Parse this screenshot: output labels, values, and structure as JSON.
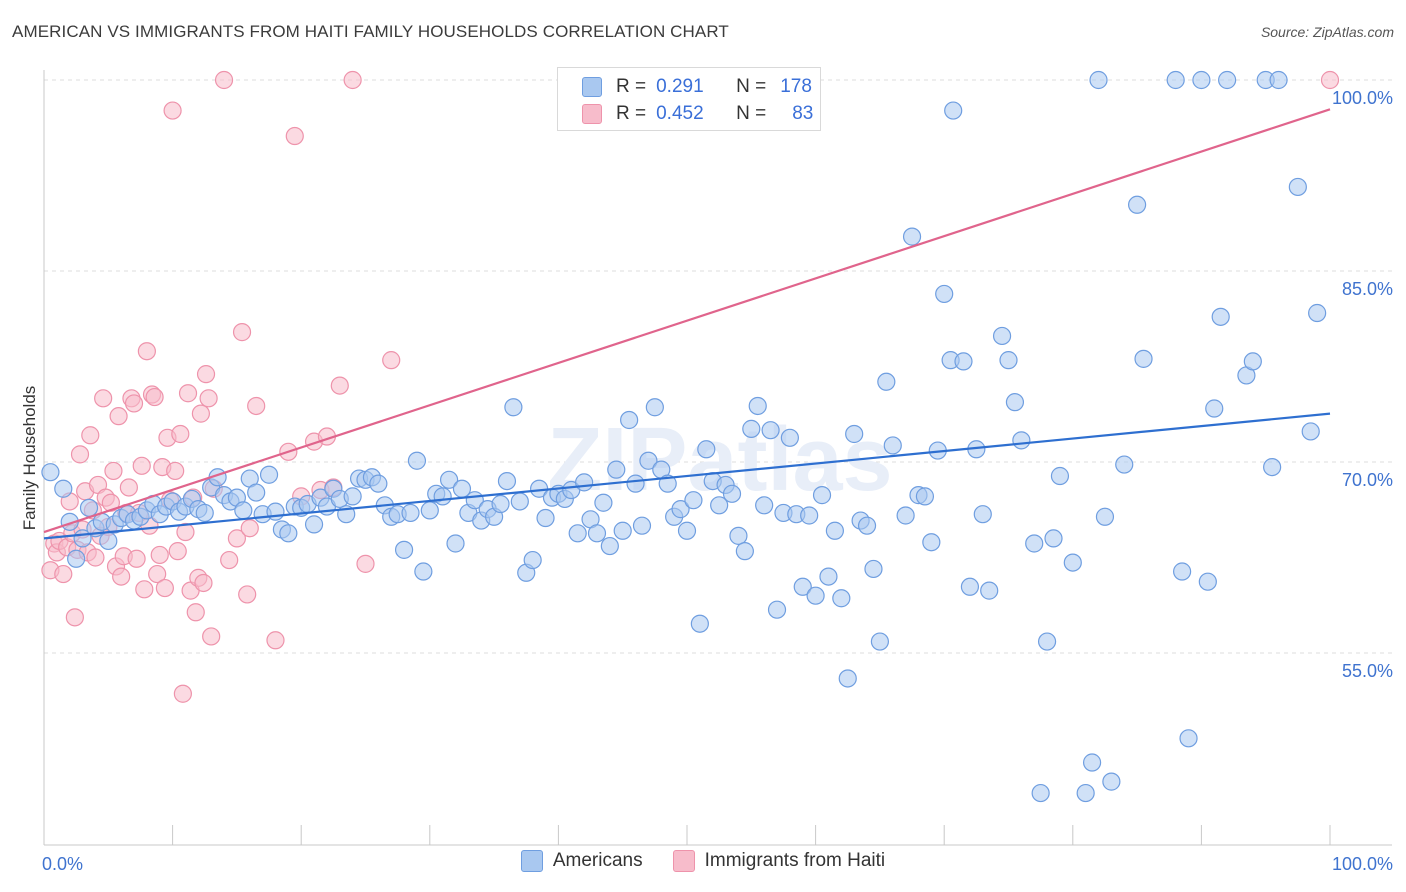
{
  "header": {
    "title": "AMERICAN VS IMMIGRANTS FROM HAITI FAMILY HOUSEHOLDS CORRELATION CHART",
    "source": "Source: ZipAtlas.com"
  },
  "legend_top": {
    "rows": [
      {
        "r_label": "R =",
        "r_value": "0.291",
        "n_label": "N =",
        "n_value": "178"
      },
      {
        "r_label": "R =",
        "r_value": "0.452",
        "n_label": "N =",
        "n_value": "83"
      }
    ]
  },
  "legend_bottom": {
    "items": [
      "Americans",
      "Immigrants from Haiti"
    ]
  },
  "colors": {
    "americans_fill": "#a9c8f0",
    "americans_stroke": "#6f9ee0",
    "americans_line": "#2e6fd0",
    "haiti_fill": "#f7bccb",
    "haiti_stroke": "#ee93ab",
    "haiti_line": "#e0648c",
    "grid": "#dddddd",
    "tick_label": "#3f73cf"
  },
  "watermark": "ZIPatlas",
  "chart_data": {
    "type": "scatter",
    "title": "AMERICAN VS IMMIGRANTS FROM HAITI FAMILY HOUSEHOLDS CORRELATION CHART",
    "xlabel": "",
    "ylabel": "Family Households",
    "xlim": [
      0,
      100
    ],
    "ylim": [
      40,
      102
    ],
    "x_tick_labels": [
      "0.0%",
      "100.0%"
    ],
    "y_ticks": [
      55,
      70,
      85,
      100
    ],
    "y_tick_labels": [
      "55.0%",
      "70.0%",
      "85.0%",
      "100.0%"
    ],
    "grid": true,
    "series": [
      {
        "name": "Americans",
        "r": 0.291,
        "n": 178,
        "trend": {
          "x": [
            0,
            100
          ],
          "y": [
            64.0,
            73.8
          ]
        },
        "points": [
          [
            0.5,
            69.2
          ],
          [
            1.5,
            67.9
          ],
          [
            2.0,
            65.3
          ],
          [
            2.5,
            62.4
          ],
          [
            3.0,
            64.0
          ],
          [
            3.5,
            66.4
          ],
          [
            4.0,
            64.8
          ],
          [
            4.5,
            65.3
          ],
          [
            5.0,
            63.8
          ],
          [
            5.5,
            65.1
          ],
          [
            6.0,
            65.6
          ],
          [
            6.5,
            65.9
          ],
          [
            7.0,
            65.4
          ],
          [
            7.5,
            65.7
          ],
          [
            8.0,
            66.2
          ],
          [
            8.5,
            66.7
          ],
          [
            9.0,
            65.9
          ],
          [
            9.5,
            66.5
          ],
          [
            10.0,
            66.9
          ],
          [
            10.5,
            66.1
          ],
          [
            11.0,
            66.5
          ],
          [
            11.5,
            67.1
          ],
          [
            12.0,
            66.3
          ],
          [
            12.5,
            66.0
          ],
          [
            13.0,
            68.0
          ],
          [
            13.5,
            68.8
          ],
          [
            14.0,
            67.4
          ],
          [
            14.5,
            66.9
          ],
          [
            15.0,
            67.2
          ],
          [
            15.5,
            66.2
          ],
          [
            16.0,
            68.7
          ],
          [
            16.5,
            67.6
          ],
          [
            17.0,
            65.9
          ],
          [
            17.5,
            69.0
          ],
          [
            18.0,
            66.1
          ],
          [
            18.5,
            64.7
          ],
          [
            19.0,
            64.4
          ],
          [
            19.5,
            66.5
          ],
          [
            20.0,
            66.4
          ],
          [
            20.5,
            66.7
          ],
          [
            21.0,
            65.1
          ],
          [
            21.5,
            67.2
          ],
          [
            22.0,
            66.5
          ],
          [
            22.5,
            67.9
          ],
          [
            23.0,
            67.1
          ],
          [
            23.5,
            65.9
          ],
          [
            24.0,
            67.3
          ],
          [
            24.5,
            68.7
          ],
          [
            25.0,
            68.6
          ],
          [
            25.5,
            68.8
          ],
          [
            26.0,
            68.3
          ],
          [
            26.5,
            66.6
          ],
          [
            27.0,
            65.7
          ],
          [
            27.5,
            65.9
          ],
          [
            28.0,
            63.1
          ],
          [
            28.5,
            66.0
          ],
          [
            29.0,
            70.1
          ],
          [
            29.5,
            61.4
          ],
          [
            30.0,
            66.2
          ],
          [
            30.5,
            67.5
          ],
          [
            31.0,
            67.3
          ],
          [
            31.5,
            68.6
          ],
          [
            32.0,
            63.6
          ],
          [
            32.5,
            67.9
          ],
          [
            33.0,
            66.0
          ],
          [
            33.5,
            67.0
          ],
          [
            34.0,
            65.4
          ],
          [
            34.5,
            66.3
          ],
          [
            35.0,
            65.7
          ],
          [
            35.5,
            66.7
          ],
          [
            36.0,
            68.5
          ],
          [
            36.5,
            74.3
          ],
          [
            37.0,
            66.9
          ],
          [
            37.5,
            61.3
          ],
          [
            38.0,
            62.3
          ],
          [
            38.5,
            67.9
          ],
          [
            39.0,
            65.6
          ],
          [
            39.5,
            67.2
          ],
          [
            40.0,
            67.5
          ],
          [
            40.5,
            67.1
          ],
          [
            41.0,
            67.8
          ],
          [
            41.5,
            64.4
          ],
          [
            42.0,
            68.4
          ],
          [
            42.5,
            65.5
          ],
          [
            43.0,
            64.4
          ],
          [
            43.5,
            66.8
          ],
          [
            44.0,
            63.4
          ],
          [
            44.5,
            69.4
          ],
          [
            45.0,
            64.6
          ],
          [
            45.5,
            73.3
          ],
          [
            46.0,
            68.3
          ],
          [
            46.5,
            65.0
          ],
          [
            47.0,
            70.1
          ],
          [
            47.5,
            74.3
          ],
          [
            48.0,
            69.4
          ],
          [
            48.5,
            68.3
          ],
          [
            49.0,
            65.7
          ],
          [
            49.5,
            66.3
          ],
          [
            50.0,
            64.6
          ],
          [
            50.5,
            67.0
          ],
          [
            51.0,
            57.3
          ],
          [
            51.5,
            71.0
          ],
          [
            52.0,
            68.5
          ],
          [
            52.5,
            66.6
          ],
          [
            53.0,
            68.2
          ],
          [
            53.5,
            67.5
          ],
          [
            54.0,
            64.2
          ],
          [
            54.5,
            63.0
          ],
          [
            55.0,
            72.6
          ],
          [
            55.5,
            74.4
          ],
          [
            56.0,
            66.6
          ],
          [
            56.5,
            72.5
          ],
          [
            57.0,
            58.4
          ],
          [
            57.5,
            66.0
          ],
          [
            58.0,
            71.9
          ],
          [
            58.5,
            65.9
          ],
          [
            59.0,
            60.2
          ],
          [
            59.5,
            65.8
          ],
          [
            60.0,
            59.5
          ],
          [
            60.5,
            67.4
          ],
          [
            61.0,
            61.0
          ],
          [
            61.5,
            64.6
          ],
          [
            62.0,
            59.3
          ],
          [
            62.5,
            53.0
          ],
          [
            63.0,
            72.2
          ],
          [
            63.5,
            65.4
          ],
          [
            64.0,
            65.0
          ],
          [
            64.5,
            61.6
          ],
          [
            65.0,
            55.9
          ],
          [
            65.5,
            76.3
          ],
          [
            66.0,
            71.3
          ],
          [
            67.0,
            65.8
          ],
          [
            67.5,
            87.7
          ],
          [
            68.0,
            67.4
          ],
          [
            68.5,
            67.3
          ],
          [
            69.0,
            63.7
          ],
          [
            69.5,
            70.9
          ],
          [
            70.0,
            83.2
          ],
          [
            70.5,
            78.0
          ],
          [
            70.7,
            97.6
          ],
          [
            71.5,
            77.9
          ],
          [
            72.0,
            60.2
          ],
          [
            72.5,
            71.0
          ],
          [
            73.0,
            65.9
          ],
          [
            73.5,
            59.9
          ],
          [
            74.5,
            79.9
          ],
          [
            75.0,
            78.0
          ],
          [
            75.5,
            74.7
          ],
          [
            76.0,
            71.7
          ],
          [
            77.0,
            63.6
          ],
          [
            77.5,
            44.0
          ],
          [
            78.0,
            55.9
          ],
          [
            78.5,
            64.0
          ],
          [
            79.0,
            68.9
          ],
          [
            80.0,
            62.1
          ],
          [
            81.0,
            44.0
          ],
          [
            81.5,
            46.4
          ],
          [
            82.0,
            100.0
          ],
          [
            82.5,
            65.7
          ],
          [
            83.0,
            44.9
          ],
          [
            84.0,
            69.8
          ],
          [
            85.0,
            90.2
          ],
          [
            85.5,
            78.1
          ],
          [
            88.0,
            100.0
          ],
          [
            88.5,
            61.4
          ],
          [
            89.0,
            48.3
          ],
          [
            90.0,
            100.0
          ],
          [
            90.5,
            60.6
          ],
          [
            91.0,
            74.2
          ],
          [
            91.5,
            81.4
          ],
          [
            92.0,
            100.0
          ],
          [
            93.5,
            76.8
          ],
          [
            94.0,
            77.9
          ],
          [
            95.0,
            100.0
          ],
          [
            95.5,
            69.6
          ],
          [
            96.0,
            100.0
          ],
          [
            97.5,
            91.6
          ],
          [
            98.5,
            72.4
          ],
          [
            99.0,
            81.7
          ]
        ]
      },
      {
        "name": "Immigrants from Haiti",
        "r": 0.452,
        "n": 83,
        "trend": {
          "x": [
            0,
            100
          ],
          "y": [
            64.5,
            97.7
          ]
        },
        "points": [
          [
            0.5,
            61.5
          ],
          [
            0.8,
            63.6
          ],
          [
            1.0,
            62.9
          ],
          [
            1.2,
            63.8
          ],
          [
            1.5,
            61.2
          ],
          [
            1.8,
            63.3
          ],
          [
            2.0,
            66.9
          ],
          [
            2.2,
            64.4
          ],
          [
            2.4,
            57.8
          ],
          [
            2.6,
            63.1
          ],
          [
            2.8,
            70.6
          ],
          [
            3.0,
            64.7
          ],
          [
            3.2,
            67.7
          ],
          [
            3.4,
            62.9
          ],
          [
            3.6,
            72.1
          ],
          [
            3.8,
            66.2
          ],
          [
            4.0,
            62.5
          ],
          [
            4.2,
            68.2
          ],
          [
            4.4,
            64.2
          ],
          [
            4.6,
            75.0
          ],
          [
            4.8,
            67.2
          ],
          [
            5.0,
            64.9
          ],
          [
            5.2,
            66.8
          ],
          [
            5.4,
            69.3
          ],
          [
            5.6,
            61.8
          ],
          [
            5.8,
            73.6
          ],
          [
            6.0,
            61.0
          ],
          [
            6.2,
            62.6
          ],
          [
            6.4,
            66.0
          ],
          [
            6.6,
            68.0
          ],
          [
            6.8,
            75.0
          ],
          [
            7.0,
            74.6
          ],
          [
            7.2,
            62.4
          ],
          [
            7.4,
            66.0
          ],
          [
            7.6,
            69.7
          ],
          [
            7.8,
            60.0
          ],
          [
            8.0,
            78.7
          ],
          [
            8.2,
            65.0
          ],
          [
            8.4,
            75.3
          ],
          [
            8.6,
            75.1
          ],
          [
            8.8,
            61.2
          ],
          [
            9.0,
            62.7
          ],
          [
            9.2,
            69.6
          ],
          [
            9.4,
            60.1
          ],
          [
            9.6,
            71.9
          ],
          [
            9.8,
            67.0
          ],
          [
            10.0,
            97.6
          ],
          [
            10.2,
            69.3
          ],
          [
            10.4,
            63.0
          ],
          [
            10.6,
            72.2
          ],
          [
            10.8,
            51.8
          ],
          [
            11.0,
            64.5
          ],
          [
            11.2,
            75.4
          ],
          [
            11.4,
            59.9
          ],
          [
            11.6,
            67.2
          ],
          [
            11.8,
            58.2
          ],
          [
            12.0,
            60.9
          ],
          [
            12.2,
            73.8
          ],
          [
            12.4,
            60.5
          ],
          [
            12.6,
            76.9
          ],
          [
            12.8,
            75.0
          ],
          [
            13.0,
            56.3
          ],
          [
            13.2,
            67.9
          ],
          [
            14.0,
            100.0
          ],
          [
            14.4,
            62.3
          ],
          [
            15.0,
            64.0
          ],
          [
            15.4,
            80.2
          ],
          [
            15.8,
            59.6
          ],
          [
            16.0,
            64.8
          ],
          [
            16.5,
            74.4
          ],
          [
            18.0,
            56.0
          ],
          [
            19.0,
            70.8
          ],
          [
            19.5,
            95.6
          ],
          [
            20.0,
            67.3
          ],
          [
            21.0,
            71.6
          ],
          [
            21.5,
            67.8
          ],
          [
            22.0,
            72.0
          ],
          [
            22.5,
            68.0
          ],
          [
            23.0,
            76.0
          ],
          [
            24.0,
            100.0
          ],
          [
            25.0,
            62.0
          ],
          [
            27.0,
            78.0
          ],
          [
            100.0,
            100.0
          ]
        ]
      }
    ]
  }
}
